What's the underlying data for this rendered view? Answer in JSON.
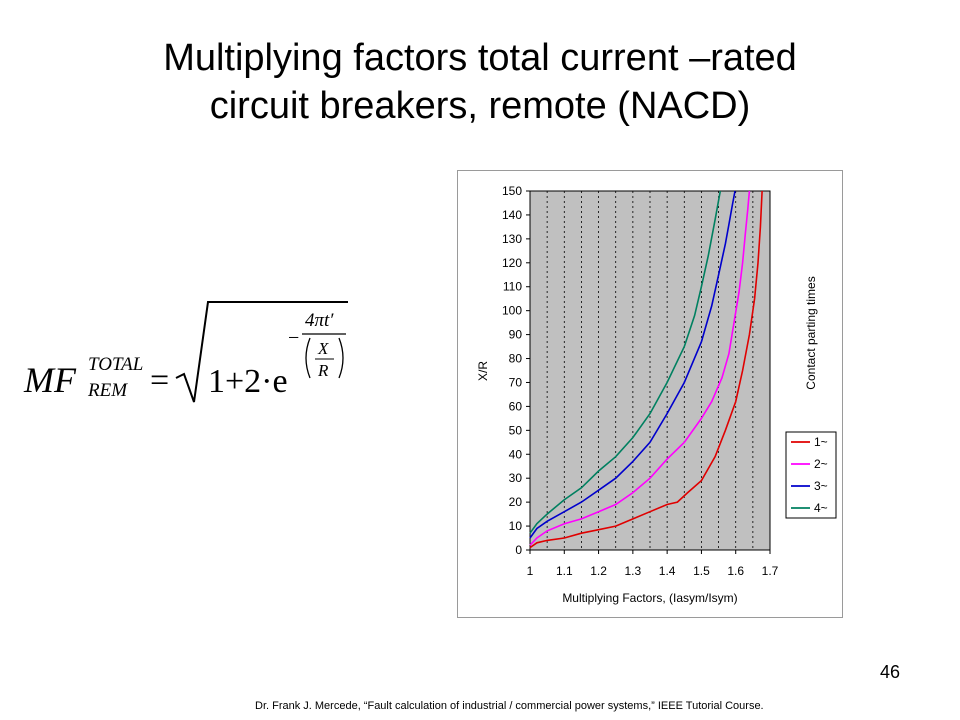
{
  "slide": {
    "title_line1": "Multiplying factors total current –rated",
    "title_line2": "circuit breakers, remote (NACD)",
    "page_number": "46",
    "footer": "Dr. Frank J. Mercede, “Fault calculation of industrial / commercial power systems,” IEEE Tutorial Course."
  },
  "formula": {
    "lhs_main": "MF",
    "lhs_sup": "TOTAL",
    "lhs_sub": "REM",
    "equals": "=",
    "radicand": "1+2·e",
    "exp_minus": "−",
    "exp_num": "4πt′",
    "exp_den_num": "X",
    "exp_den_den": "R"
  },
  "chart_data": {
    "type": "line",
    "xlabel": "Multiplying Factors, (Iasym/Isym)",
    "ylabel": "X/R",
    "legend_title": "Contact parting times",
    "xlim": [
      1.0,
      1.7
    ],
    "ylim": [
      0,
      150
    ],
    "xticks": [
      "1",
      "1.1",
      "1.2",
      "1.3",
      "1.4",
      "1.5",
      "1.6",
      "1.7"
    ],
    "yticks": [
      "0",
      "10",
      "20",
      "30",
      "40",
      "50",
      "60",
      "70",
      "80",
      "90",
      "100",
      "110",
      "120",
      "130",
      "140",
      "150"
    ],
    "grid": "vertical dashed",
    "legend_position": "right",
    "plot_background": "#c0c0c0",
    "series": [
      {
        "name": "1~",
        "color": "#e00000",
        "x": [
          1.0,
          1.02,
          1.05,
          1.1,
          1.15,
          1.2,
          1.25,
          1.3,
          1.35,
          1.4,
          1.43,
          1.46,
          1.5,
          1.54,
          1.57,
          1.6,
          1.62,
          1.64,
          1.655,
          1.665,
          1.672,
          1.677
        ],
        "y": [
          1,
          3,
          4,
          5,
          7,
          8.5,
          10,
          13,
          16,
          19,
          20,
          24,
          29,
          39,
          50,
          62,
          75,
          90,
          105,
          120,
          135,
          150
        ]
      },
      {
        "name": "2~",
        "color": "#ff00ff",
        "x": [
          1.0,
          1.02,
          1.05,
          1.1,
          1.15,
          1.2,
          1.25,
          1.3,
          1.35,
          1.4,
          1.45,
          1.5,
          1.53,
          1.56,
          1.58,
          1.595,
          1.61,
          1.62,
          1.628,
          1.635,
          1.64
        ],
        "y": [
          2,
          5,
          8,
          11,
          13,
          16,
          19,
          24,
          30,
          38,
          45,
          55,
          62,
          72,
          82,
          95,
          108,
          120,
          132,
          142,
          150
        ]
      },
      {
        "name": "3~",
        "color": "#0000cc",
        "x": [
          1.0,
          1.02,
          1.05,
          1.1,
          1.15,
          1.2,
          1.25,
          1.3,
          1.35,
          1.4,
          1.45,
          1.5,
          1.53,
          1.55,
          1.57,
          1.58,
          1.59,
          1.598
        ],
        "y": [
          5,
          9,
          12,
          16,
          20,
          25,
          30,
          37,
          45,
          57,
          70,
          87,
          102,
          115,
          128,
          136,
          144,
          150
        ]
      },
      {
        "name": "4~",
        "color": "#008060",
        "x": [
          1.0,
          1.02,
          1.05,
          1.1,
          1.15,
          1.2,
          1.25,
          1.3,
          1.35,
          1.4,
          1.45,
          1.48,
          1.5,
          1.52,
          1.54,
          1.555
        ],
        "y": [
          7,
          11,
          15,
          21,
          26,
          33,
          39,
          47,
          57,
          70,
          85,
          98,
          110,
          123,
          138,
          150
        ]
      }
    ]
  }
}
